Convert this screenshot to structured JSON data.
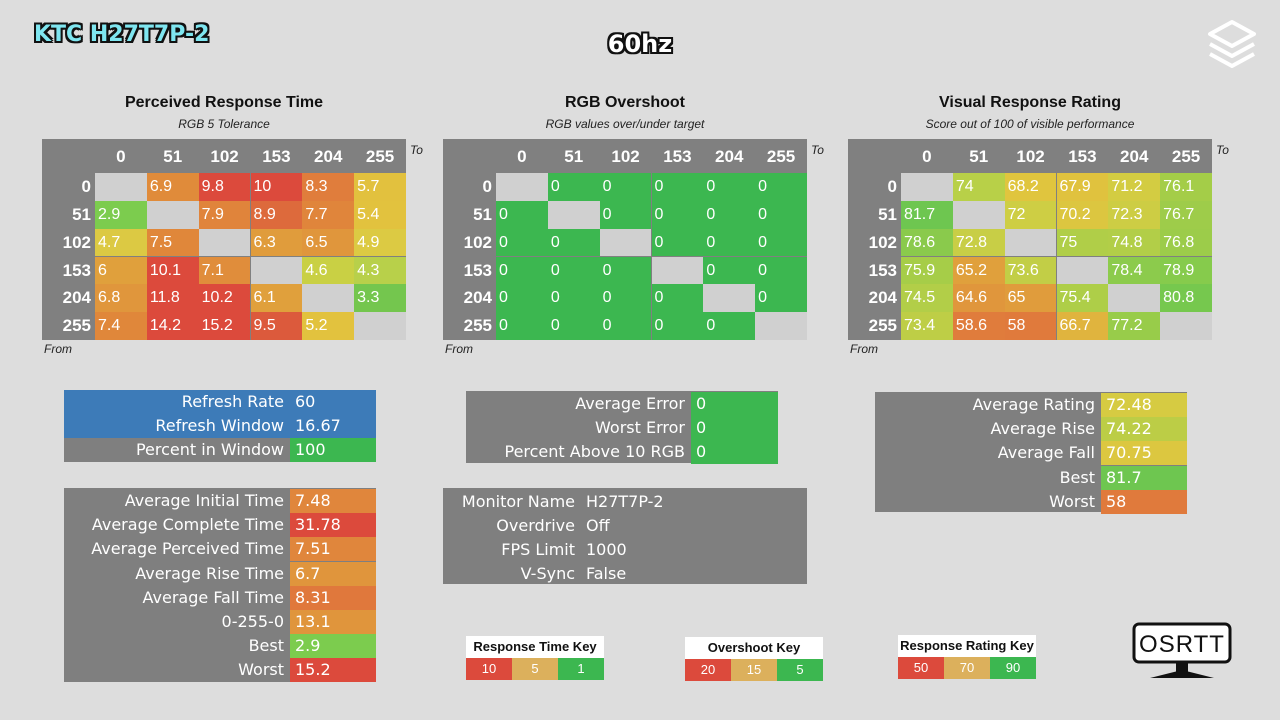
{
  "header": {
    "brand": "KTC H27T7P-2",
    "refresh_label": "60hz"
  },
  "panels": [
    {
      "title": "Perceived Response Time",
      "subtitle": "RGB 5 Tolerance",
      "to_label": "To",
      "from_label": "From",
      "columns": [
        "0",
        "51",
        "102",
        "153",
        "204",
        "255"
      ],
      "rows": [
        "0",
        "51",
        "102",
        "153",
        "204",
        "255"
      ],
      "values": [
        [
          "",
          "6.9",
          "9.8",
          "10",
          "8.3",
          "5.7"
        ],
        [
          "2.9",
          "",
          "7.9",
          "8.9",
          "7.7",
          "5.4"
        ],
        [
          "4.7",
          "7.5",
          "",
          "6.3",
          "6.5",
          "4.9"
        ],
        [
          "6",
          "10.1",
          "7.1",
          "",
          "4.6",
          "4.3"
        ],
        [
          "6.8",
          "11.8",
          "10.2",
          "6.1",
          "",
          "3.3"
        ],
        [
          "7.4",
          "14.2",
          "15.2",
          "9.5",
          "5.2",
          ""
        ]
      ],
      "colors": [
        [
          "#d0d0d0",
          "#e08b3a",
          "#dc4a3c",
          "#dc4a3c",
          "#e07d3c",
          "#e2c13e"
        ],
        [
          "#7ccc4e",
          "#d0d0d0",
          "#e0843b",
          "#dd6a3c",
          "#e0853b",
          "#e2c23e"
        ],
        [
          "#dcc943",
          "#e0873a",
          "#d0d0d0",
          "#e09c3c",
          "#e0963c",
          "#dcca43"
        ],
        [
          "#e0a03c",
          "#dc4a3c",
          "#e08d3b",
          "#d0d0d0",
          "#c9d044",
          "#b8d04a"
        ],
        [
          "#e0963c",
          "#dc4a3c",
          "#dc4a3c",
          "#e0a03c",
          "#d0d0d0",
          "#74c64e"
        ],
        [
          "#e0873a",
          "#dc4a3c",
          "#dc4a3c",
          "#dc5a3c",
          "#e2c23e",
          "#d0d0d0"
        ]
      ]
    },
    {
      "title": "RGB Overshoot",
      "subtitle": "RGB values over/under target",
      "to_label": "To",
      "from_label": "From",
      "columns": [
        "0",
        "51",
        "102",
        "153",
        "204",
        "255"
      ],
      "rows": [
        "0",
        "51",
        "102",
        "153",
        "204",
        "255"
      ],
      "values": [
        [
          "",
          "0",
          "0",
          "0",
          "0",
          "0"
        ],
        [
          "0",
          "",
          "0",
          "0",
          "0",
          "0"
        ],
        [
          "0",
          "0",
          "",
          "0",
          "0",
          "0"
        ],
        [
          "0",
          "0",
          "0",
          "",
          "0",
          "0"
        ],
        [
          "0",
          "0",
          "0",
          "0",
          "",
          "0"
        ],
        [
          "0",
          "0",
          "0",
          "0",
          "0",
          ""
        ]
      ],
      "colors": [
        [
          "#d0d0d0",
          "#3cb750",
          "#3cb750",
          "#3cb750",
          "#3cb750",
          "#3cb750"
        ],
        [
          "#3cb750",
          "#d0d0d0",
          "#3cb750",
          "#3cb750",
          "#3cb750",
          "#3cb750"
        ],
        [
          "#3cb750",
          "#3cb750",
          "#d0d0d0",
          "#3cb750",
          "#3cb750",
          "#3cb750"
        ],
        [
          "#3cb750",
          "#3cb750",
          "#3cb750",
          "#d0d0d0",
          "#3cb750",
          "#3cb750"
        ],
        [
          "#3cb750",
          "#3cb750",
          "#3cb750",
          "#3cb750",
          "#d0d0d0",
          "#3cb750"
        ],
        [
          "#3cb750",
          "#3cb750",
          "#3cb750",
          "#3cb750",
          "#3cb750",
          "#d0d0d0"
        ]
      ]
    },
    {
      "title": "Visual Response Rating",
      "subtitle": "Score out of 100 of visible performance",
      "to_label": "To",
      "from_label": "From",
      "columns": [
        "0",
        "51",
        "102",
        "153",
        "204",
        "255"
      ],
      "rows": [
        "0",
        "51",
        "102",
        "153",
        "204",
        "255"
      ],
      "values": [
        [
          "",
          "74",
          "68.2",
          "67.9",
          "71.2",
          "76.1"
        ],
        [
          "81.7",
          "",
          "72",
          "70.2",
          "72.3",
          "76.7"
        ],
        [
          "78.6",
          "72.8",
          "",
          "75",
          "74.8",
          "76.8"
        ],
        [
          "75.9",
          "65.2",
          "73.6",
          "",
          "78.4",
          "78.9"
        ],
        [
          "74.5",
          "64.6",
          "65",
          "75.4",
          "",
          "80.8"
        ],
        [
          "73.4",
          "58.6",
          "58",
          "66.7",
          "77.2",
          ""
        ]
      ],
      "colors": [
        [
          "#d0d0d0",
          "#b8d048",
          "#e0c53e",
          "#e0c23e",
          "#d3cc42",
          "#a4cd48"
        ],
        [
          "#6ec650",
          "#d0d0d0",
          "#cece44",
          "#dcc640",
          "#cdcd44",
          "#9ecc4a"
        ],
        [
          "#8aca4c",
          "#c8ce46",
          "#d0d0d0",
          "#b0ce48",
          "#b2ce48",
          "#9ccc4a"
        ],
        [
          "#a6cd48",
          "#e0a03c",
          "#c2ce46",
          "#d0d0d0",
          "#8ccb4c",
          "#86cb4c"
        ],
        [
          "#b2ce48",
          "#e0963c",
          "#e09c3c",
          "#aece48",
          "#d0d0d0",
          "#76c84e"
        ],
        [
          "#bece46",
          "#e07c3c",
          "#e07a3c",
          "#e0b43e",
          "#98cc4a",
          "#d0d0d0"
        ]
      ]
    }
  ],
  "refresh_box": {
    "rows": [
      {
        "label": "Refresh Rate",
        "value": "60"
      },
      {
        "label": "Refresh Window",
        "value": "16.67"
      },
      {
        "label": "Percent in Window",
        "value": "100"
      }
    ]
  },
  "timing_box": {
    "rows": [
      {
        "label": "Average Initial Time",
        "value": "7.48",
        "color": "#e0863c"
      },
      {
        "label": "Average Complete Time",
        "value": "31.78",
        "color": "#dc4a3c"
      },
      {
        "label": "Average Perceived Time",
        "value": "7.51",
        "color": "#e0863c"
      },
      {
        "label": "Average Rise Time",
        "value": "6.7",
        "color": "#e0953c"
      },
      {
        "label": "Average Fall Time",
        "value": "8.31",
        "color": "#e0783c"
      },
      {
        "label": "0-255-0",
        "value": "13.1",
        "color": "#e0953c"
      },
      {
        "label": "Best",
        "value": "2.9",
        "color": "#7ccc4e"
      },
      {
        "label": "Worst",
        "value": "15.2",
        "color": "#dc4a3c"
      }
    ]
  },
  "overshoot_box": {
    "rows": [
      {
        "label": "Average Error",
        "value": "0"
      },
      {
        "label": "Worst Error",
        "value": "0"
      },
      {
        "label": "Percent Above 10 RGB",
        "value": "0"
      }
    ]
  },
  "monitor_box": {
    "rows": [
      {
        "label": "Monitor Name",
        "value": "H27T7P-2"
      },
      {
        "label": "Overdrive",
        "value": "Off"
      },
      {
        "label": "FPS Limit",
        "value": "1000"
      },
      {
        "label": "V-Sync",
        "value": "False"
      }
    ]
  },
  "rating_box": {
    "rows": [
      {
        "label": "Average Rating",
        "value": "72.48",
        "color": "#d6cb42"
      },
      {
        "label": "Average Rise",
        "value": "74.22",
        "color": "#bccd46"
      },
      {
        "label": "Average Fall",
        "value": "70.75",
        "color": "#dcc740"
      },
      {
        "label": "Best",
        "value": "81.7",
        "color": "#6ec650"
      },
      {
        "label": "Worst",
        "value": "58",
        "color": "#e07a3c"
      }
    ]
  },
  "keys": [
    {
      "title": "Response Time Key",
      "cells": [
        "10",
        "5",
        "1"
      ],
      "colors": [
        "#dc4a3c",
        "#dcb05c",
        "#3cb750"
      ]
    },
    {
      "title": "Overshoot Key",
      "cells": [
        "20",
        "15",
        "5"
      ],
      "colors": [
        "#dc4a3c",
        "#dcb05c",
        "#3cb750"
      ]
    },
    {
      "title": "Response Rating Key",
      "cells": [
        "50",
        "70",
        "90"
      ],
      "colors": [
        "#dc4a3c",
        "#dcb05c",
        "#3cb750"
      ]
    }
  ],
  "footer": {
    "logo_text": "OSRTT"
  },
  "colors": {
    "background": "#dddddd",
    "panel_gray": "#808080",
    "blue": "#3d7bb8",
    "green": "#3cb750",
    "red": "#dc4a3c",
    "orange": "#e0863c",
    "yellow": "#e2c23e"
  },
  "icons": [
    "stacked-squares-logo-icon",
    "monitor-icon"
  ]
}
